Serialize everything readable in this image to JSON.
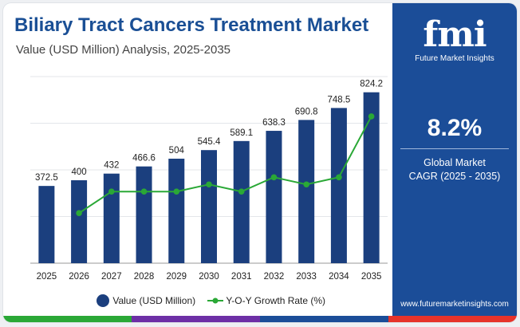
{
  "header": {
    "title": "Biliary Tract Cancers Treatment Market",
    "subtitle": "Value (USD Million) Analysis, 2025-2035"
  },
  "brand": {
    "logo": "fmi",
    "name": "Future Market Insights",
    "website": "www.futuremarketinsights.com"
  },
  "highlight": {
    "value": "8.2%",
    "label_line1": "Global Market",
    "label_line2": "CAGR (2025 - 2035)"
  },
  "colors": {
    "title": "#1a4f95",
    "bar": "#1b3f7e",
    "line": "#2aa836",
    "panel": "#1b4d98",
    "bottom_bar": [
      "#2aa836",
      "#6d2fa6",
      "#1b4d98",
      "#e6332a"
    ]
  },
  "chart_data": {
    "type": "bar",
    "categories": [
      "2025",
      "2026",
      "2027",
      "2028",
      "2029",
      "2030",
      "2031",
      "2032",
      "2033",
      "2034",
      "2035"
    ],
    "series": [
      {
        "name": "Value (USD Million)",
        "type": "bar",
        "values": [
          372.5,
          400,
          432,
          466.6,
          504,
          545.4,
          589.1,
          638.3,
          690.8,
          748.5,
          824.2
        ],
        "labels": [
          "372.5",
          "400",
          "432",
          "466.6",
          "504",
          "545.4",
          "589.1",
          "638.3",
          "690.8",
          "748.5",
          "824.2"
        ]
      },
      {
        "name": "Y-O-Y Growth Rate (%)",
        "type": "line",
        "x": [
          "2026",
          "2027",
          "2028",
          "2029",
          "2030",
          "2031",
          "2032",
          "2033",
          "2034",
          "2035"
        ],
        "values": [
          7.4,
          8.0,
          8.0,
          8.0,
          8.2,
          8.0,
          8.4,
          8.2,
          8.4,
          10.1
        ]
      }
    ],
    "ylim": [
      0,
      900
    ],
    "grid": true,
    "legend": "bottom-center"
  }
}
